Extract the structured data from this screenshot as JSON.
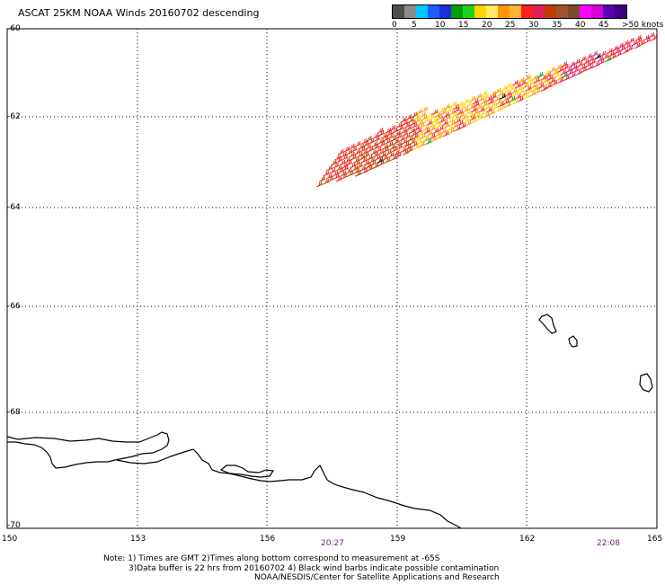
{
  "title": "ASCAT 25KM NOAA Winds 20160702 descending",
  "legend": {
    "colors": [
      "#4d4d4d",
      "#8a8a8a",
      "#00c8ff",
      "#1e5bff",
      "#1d2ed6",
      "#00a000",
      "#1fd11f",
      "#ffd400",
      "#ffe96a",
      "#ff9900",
      "#ffb533",
      "#ff2020",
      "#e01e58",
      "#c23b00",
      "#a0522d",
      "#7a4a2a",
      "#ff00ff",
      "#d400d4",
      "#5a00b4",
      "#3c0080"
    ],
    "ticks": [
      "0",
      "5",
      "10",
      "15",
      "20",
      "25",
      "30",
      "35",
      "40",
      "45",
      ">50 knots"
    ]
  },
  "axes": {
    "lat_labels": [
      "-60",
      "-62",
      "-64",
      "-66",
      "-68",
      "-70"
    ],
    "lon_labels": [
      "150",
      "153",
      "156",
      "159",
      "162",
      "165"
    ]
  },
  "times": [
    "20:27",
    "22:08"
  ],
  "notes": [
    "Note: 1) Times are GMT 2)Times along bottom correspond to measurement at -65S",
    "3)Data buffer is 22 hrs from 20160702 4) Black wind barbs indicate possible contamination",
    "NOAA/NESDIS/Center for Satellite Applications and Research"
  ],
  "barb_colors": [
    "#ff9900",
    "#ff2020",
    "#ffd400",
    "#c23b00",
    "#e01e58",
    "#00a000",
    "#000000"
  ]
}
